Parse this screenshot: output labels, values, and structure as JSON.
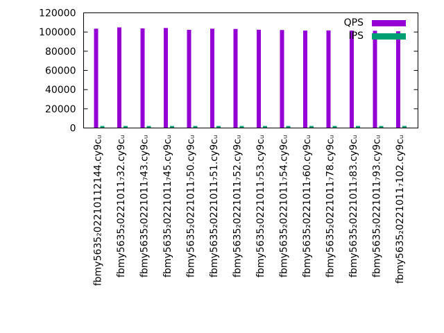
{
  "chart_data": {
    "type": "bar",
    "title": "",
    "xlabel": "",
    "ylabel": "",
    "ylim": [
      0,
      120000
    ],
    "yticks": [
      0,
      20000,
      40000,
      60000,
      80000,
      100000,
      120000
    ],
    "grid": false,
    "legend_position": "top-right",
    "categories": [
      "fbmy5635₂02210112144.cy9cᵤ",
      "fbmy5635₂0221011₇32.cy9cᵤ",
      "fbmy5635₂0221011₇43.cy9cᵤ",
      "fbmy5635₂0221011₇45.cy9cᵤ",
      "fbmy5635₂0221011₇50.cy9cᵤ",
      "fbmy5635₂0221011₇51.cy9cᵤ",
      "fbmy5635₂0221011₇52.cy9cᵤ",
      "fbmy5635₂0221011₇53.cy9cᵤ",
      "fbmy5635₂0221011₇54.cy9cᵤ",
      "fbmy5635₂0221011₇60.cy9cᵤ",
      "fbmy5635₂0221011₇78.cy9cᵤ",
      "fbmy5635₂0221011₇83.cy9cᵤ",
      "fbmy5635₂0221011₇93.cy9cᵤ",
      "fbmy5635₂0221011₇102.cy9cᵤ"
    ],
    "series": [
      {
        "name": "QPS",
        "color": "#9400d3",
        "values": [
          103500,
          104800,
          103800,
          104200,
          102300,
          103500,
          103200,
          102400,
          102100,
          101500,
          101700,
          101500,
          101300,
          100800
        ]
      },
      {
        "name": "IPS",
        "color": "#009e73",
        "values": [
          2100,
          2100,
          2100,
          2100,
          2100,
          2100,
          2100,
          2100,
          2100,
          2100,
          2100,
          2100,
          2100,
          2100
        ]
      }
    ]
  }
}
